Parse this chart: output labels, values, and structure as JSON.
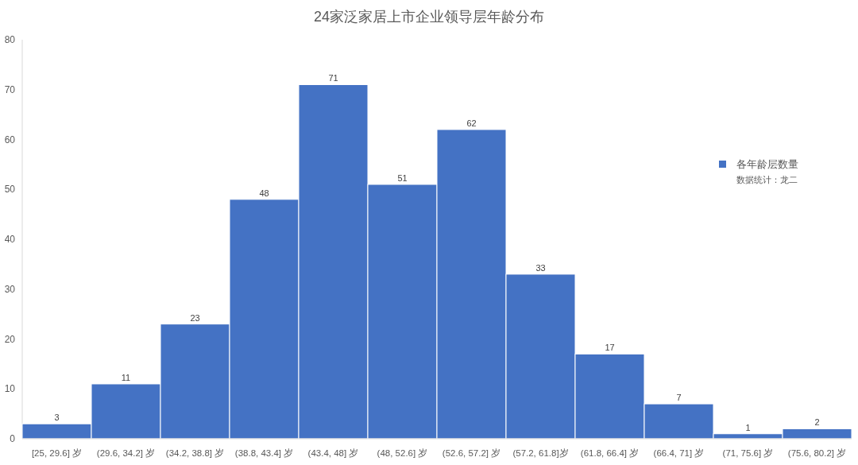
{
  "chart_data": {
    "type": "bar",
    "title": "24家泛家居上市企业领导层年龄分布",
    "categories": [
      "[25, 29.6] 岁",
      "(29.6, 34.2] 岁",
      "(34.2, 38.8] 岁",
      "(38.8, 43.4] 岁",
      "(43.4, 48] 岁",
      "(48, 52.6] 岁",
      "(52.6, 57.2] 岁",
      "(57.2, 61.8]岁",
      "(61.8, 66.4] 岁",
      "(66.4, 71] 岁",
      "(71, 75.6] 岁",
      "(75.6, 80.2] 岁"
    ],
    "series": [
      {
        "name": "各年龄层数量",
        "color": "#4472c4",
        "values": [
          3,
          11,
          23,
          48,
          71,
          51,
          62,
          33,
          17,
          7,
          1,
          2
        ]
      }
    ],
    "ylim": [
      0,
      80
    ],
    "yticks": [
      0,
      10,
      20,
      30,
      40,
      50,
      60,
      70,
      80
    ],
    "data_labels": true,
    "legend": "right",
    "annotations": [
      "数据统计：龙二"
    ]
  }
}
